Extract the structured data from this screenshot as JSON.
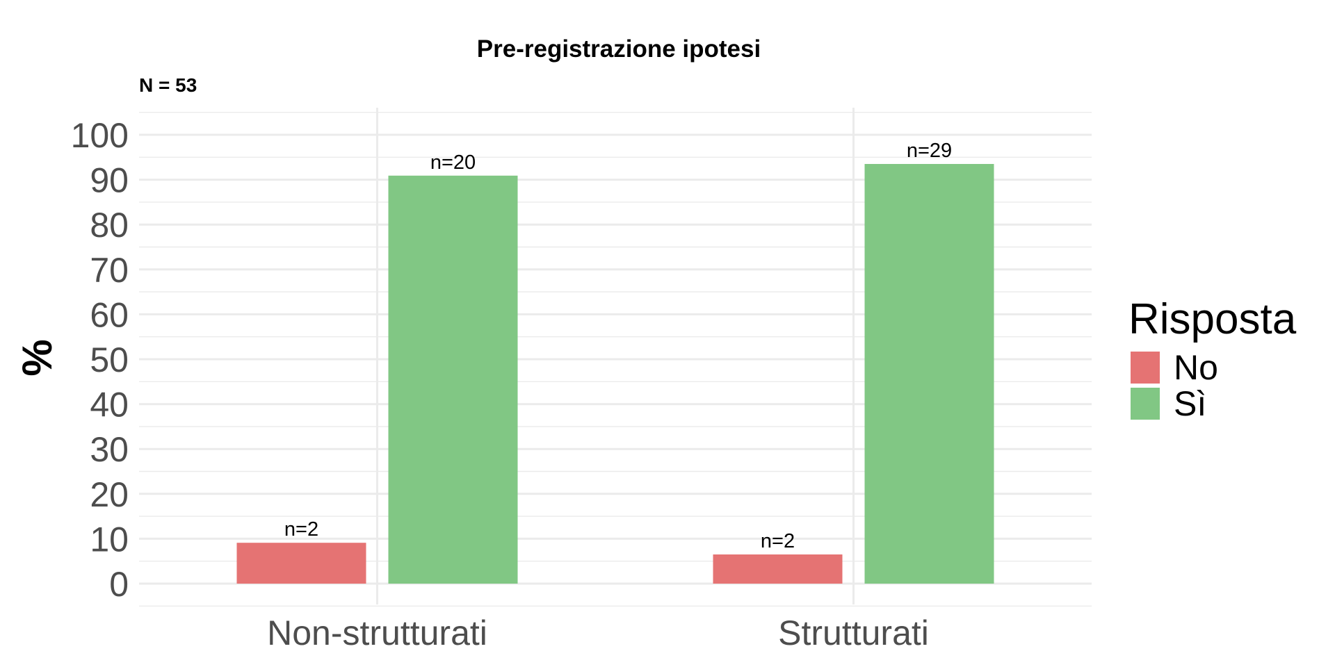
{
  "chart_data": {
    "type": "bar",
    "title": "Pre-registrazione ipotesi",
    "subtitle": "N = 53",
    "xlabel": "",
    "ylabel": "%",
    "ylim": [
      -5,
      105
    ],
    "yticks": [
      0,
      10,
      20,
      30,
      40,
      50,
      60,
      70,
      80,
      90,
      100
    ],
    "categories": [
      "Non-strutturati",
      "Strutturati"
    ],
    "series": [
      {
        "name": "No",
        "color": "#E57373",
        "values": [
          9.1,
          6.5
        ],
        "labels": [
          "n=2",
          "n=2"
        ]
      },
      {
        "name": "Sì",
        "color": "#81C784",
        "values": [
          90.9,
          93.5
        ],
        "labels": [
          "n=20",
          "n=29"
        ]
      }
    ],
    "grid": true,
    "legend": {
      "title": "Risposta",
      "position": "right"
    }
  }
}
